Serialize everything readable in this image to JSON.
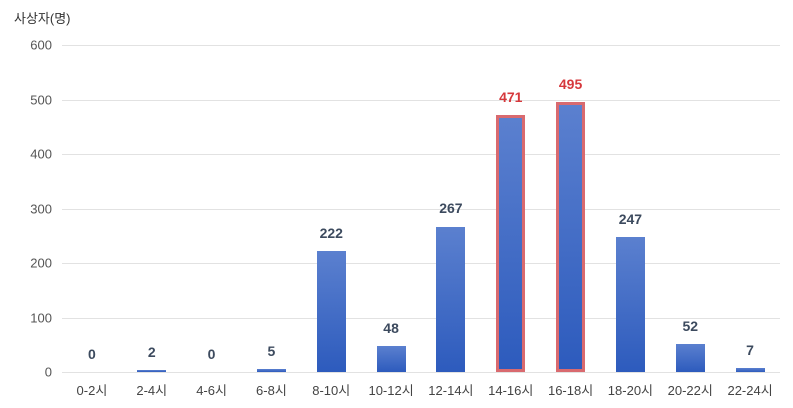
{
  "chart_data": {
    "type": "bar",
    "title": "",
    "ylabel": "사상자(명)",
    "xlabel": "",
    "ylim": [
      0,
      600
    ],
    "yticks": [
      0,
      100,
      200,
      300,
      400,
      500,
      600
    ],
    "categories": [
      "0-2시",
      "2-4시",
      "4-6시",
      "6-8시",
      "8-10시",
      "10-12시",
      "12-14시",
      "14-16시",
      "16-18시",
      "18-20시",
      "20-22시",
      "22-24시"
    ],
    "values": [
      0,
      2,
      0,
      5,
      222,
      48,
      267,
      471,
      495,
      247,
      52,
      7
    ],
    "highlighted": [
      "14-16시",
      "16-18시"
    ],
    "colors": {
      "bar": "#3a66c4",
      "highlight_border": "#d96a6f",
      "highlight_label": "#d6383c",
      "label": "#3c4a5e"
    },
    "grid": true,
    "legend": null
  }
}
